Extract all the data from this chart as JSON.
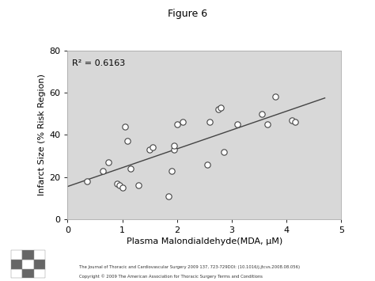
{
  "title": "Figure 6",
  "xlabel": "Plasma Malondialdehyde(MDA, μM)",
  "ylabel": "Infarct Size (% Risk Region)",
  "r2_label": "R² = 0.6163",
  "xlim": [
    0,
    5
  ],
  "ylim": [
    0,
    80
  ],
  "xticks": [
    0,
    1,
    2,
    3,
    4,
    5
  ],
  "yticks": [
    0,
    20,
    40,
    60,
    80
  ],
  "scatter_x": [
    0.35,
    0.65,
    0.75,
    0.9,
    0.95,
    1.0,
    1.05,
    1.1,
    1.15,
    1.3,
    1.5,
    1.55,
    1.85,
    1.9,
    1.95,
    1.95,
    2.0,
    2.1,
    2.55,
    2.6,
    2.75,
    2.8,
    2.85,
    3.1,
    3.55,
    3.65,
    3.8,
    4.1,
    4.15
  ],
  "scatter_y": [
    18,
    23,
    27,
    17,
    16,
    15,
    44,
    37,
    24,
    16,
    33,
    34,
    11,
    23,
    33,
    35,
    45,
    46,
    26,
    46,
    52,
    53,
    32,
    45,
    50,
    45,
    58,
    47,
    46
  ],
  "line_x": [
    0.0,
    4.7
  ],
  "line_y": [
    15.5,
    57.5
  ],
  "scatter_facecolor": "white",
  "scatter_edgecolor": "#444444",
  "line_color": "#444444",
  "fig_bg_color": "#ffffff",
  "plot_bg_color": "#d8d8d8",
  "title_color": "#000000",
  "footer_text1": "The Journal of Thoracic and Cardiovascular Surgery 2009 137, 723-729DOI: (10.1016/j.jtcvs.2008.08.056)",
  "footer_text2": "Copyright © 2009 The American Association for Thoracic Surgery Terms and Conditions"
}
